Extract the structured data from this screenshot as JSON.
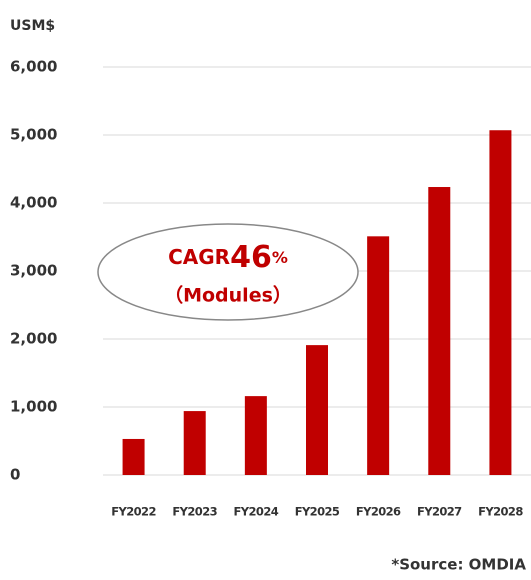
{
  "chart_data": {
    "type": "bar",
    "unit_label": "USM$",
    "categories": [
      "FY2022",
      "FY2023",
      "FY2024",
      "FY2025",
      "FY2026",
      "FY2027",
      "FY2028"
    ],
    "values": [
      530,
      940,
      1160,
      1910,
      3510,
      4235,
      5070
    ],
    "color": "#c00000",
    "ylim": [
      0,
      6000
    ],
    "yticks": [
      0,
      {
        "value": 1000,
        "label": "1,000"
      },
      {
        "value": 2000,
        "label": "2,000"
      },
      {
        "value": 3000,
        "label": "3,000"
      },
      {
        "value": 4000,
        "label": "4,000"
      },
      {
        "value": 5000,
        "label": "5,000"
      },
      {
        "value": 6000,
        "label": "6,000"
      }
    ],
    "grid": true,
    "annotation": {
      "prefix": "CAGR",
      "value": "46",
      "suffix": "%",
      "note": "（Modules）"
    },
    "source": "*Source: OMDIA"
  }
}
